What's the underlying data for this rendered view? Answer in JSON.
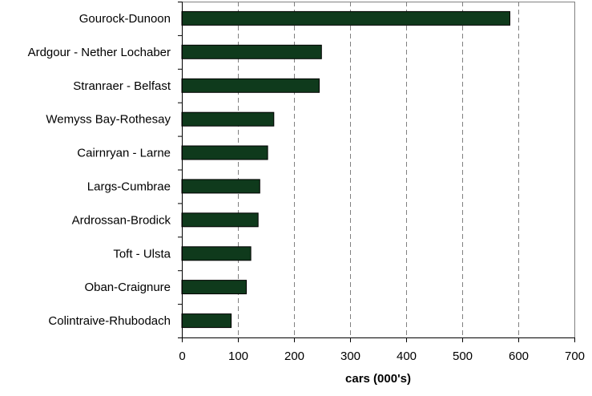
{
  "chart_data": {
    "type": "bar",
    "orientation": "horizontal",
    "categories": [
      "Gourock-Dunoon",
      "Ardgour - Nether Lochaber",
      "Stranraer - Belfast",
      "Wemyss Bay-Rothesay",
      "Cairnryan - Larne",
      "Largs-Cumbrae",
      "Ardrossan-Brodick",
      "Toft - Ulsta",
      "Oban-Craignure",
      "Colintraive-Rhubodach"
    ],
    "values": [
      585,
      249,
      245,
      164,
      153,
      139,
      136,
      123,
      115,
      88
    ],
    "title": "",
    "xlabel": "cars (000's)",
    "ylabel": "",
    "xlim": [
      0,
      700
    ],
    "xticks": [
      0,
      100,
      200,
      300,
      400,
      500,
      600,
      700
    ],
    "xtick_labels": [
      "0",
      "100",
      "200",
      "300",
      "400",
      "500",
      "600",
      "700"
    ],
    "grid": "vertical dashed",
    "legend": "none",
    "colors": {
      "bar": "#0f3a1c",
      "bar_edge": "#000000",
      "grid": "#808080",
      "axis": "#000000",
      "background": "#ffffff"
    }
  }
}
